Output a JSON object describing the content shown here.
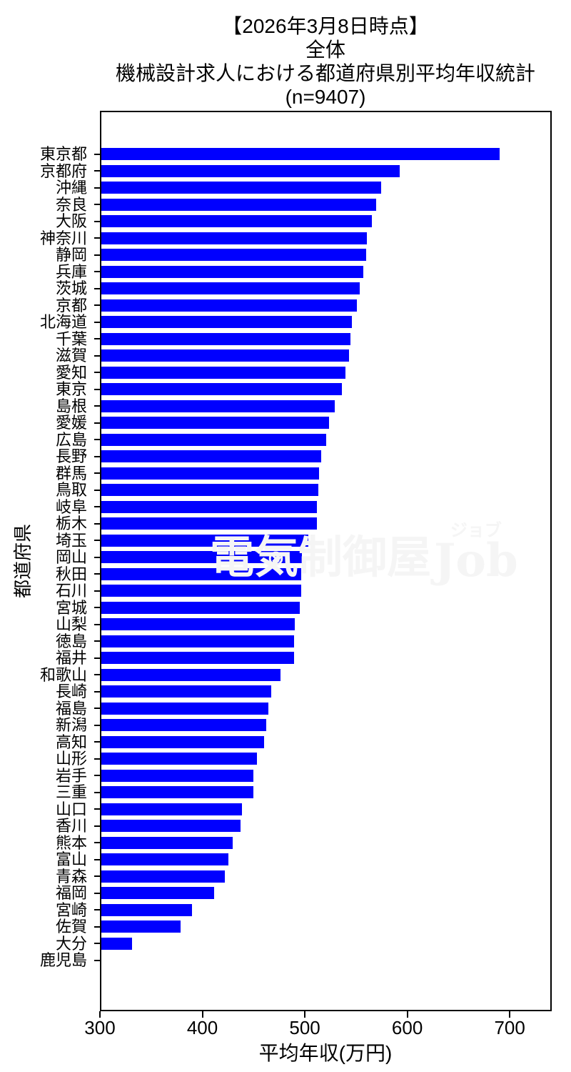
{
  "title": {
    "line1": "【2026年3月8日時点】",
    "line2": "全体",
    "line3": "機械設計求人における都道府県別平均年収統計",
    "line4": "(n=9407)"
  },
  "watermark": {
    "cjk": "電気制御屋",
    "kana": "ジョブ",
    "latin": "Job",
    "mark": "⊗",
    "color": "#f5f5f5"
  },
  "chart_data": {
    "type": "bar",
    "orientation": "horizontal",
    "title": "【2026年3月8日時点】 全体 機械設計求人における都道府県別平均年収統計 (n=9407)",
    "sample_size": 9407,
    "xlabel": "平均年収(万円)",
    "ylabel": "都道府県",
    "xlim": [
      300,
      741
    ],
    "xticks": [
      300,
      400,
      500,
      600,
      700
    ],
    "bar_color": "#0000ff",
    "grid": false,
    "legend": false,
    "categories": [
      "東京都",
      "京都府",
      "沖縄",
      "奈良",
      "大阪",
      "神奈川",
      "静岡",
      "兵庫",
      "茨城",
      "京都",
      "北海道",
      "千葉",
      "滋賀",
      "愛知",
      "東京",
      "島根",
      "愛媛",
      "広島",
      "長野",
      "群馬",
      "鳥取",
      "岐阜",
      "栃木",
      "埼玉",
      "岡山",
      "秋田",
      "石川",
      "宮城",
      "山梨",
      "徳島",
      "福井",
      "和歌山",
      "長崎",
      "福島",
      "新潟",
      "高知",
      "山形",
      "岩手",
      "三重",
      "山口",
      "香川",
      "熊本",
      "富山",
      "青森",
      "福岡",
      "宮崎",
      "佐賀",
      "大分",
      "鹿児島"
    ],
    "values": [
      691,
      593,
      575,
      570,
      566,
      561,
      560,
      557,
      554,
      551,
      546,
      545,
      543,
      540,
      536,
      529,
      524,
      521,
      516,
      514,
      513,
      512,
      512,
      503,
      497,
      496,
      496,
      495,
      490,
      489,
      489,
      476,
      467,
      464,
      462,
      460,
      453,
      449,
      449,
      438,
      437,
      429,
      425,
      421,
      411,
      389,
      378,
      330,
      300
    ]
  }
}
